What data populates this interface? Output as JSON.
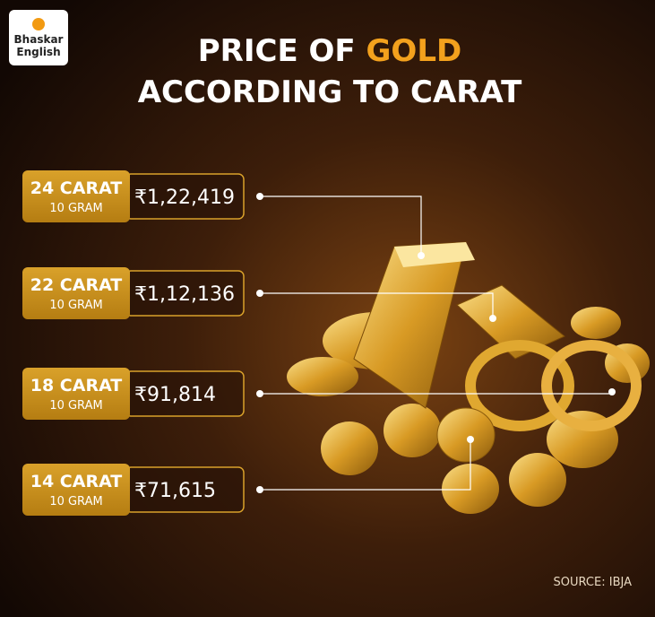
{
  "logo": {
    "line1": "Bhaskar",
    "line2": "English"
  },
  "title": {
    "line1_start": "PRICE OF",
    "line1_highlight": "GOLD",
    "line2": "ACCORDING TO CARAT"
  },
  "rows": [
    {
      "label": "24 CARAT",
      "unit": "10 GRAM",
      "price": "₹1,22,419"
    },
    {
      "label": "22 CARAT",
      "unit": "10 GRAM",
      "price": "₹1,12,136"
    },
    {
      "label": "18 CARAT",
      "unit": "10 GRAM",
      "price": "₹91,814"
    },
    {
      "label": "14 CARAT",
      "unit": "10 GRAM",
      "price": "₹71,615"
    }
  ],
  "source": "SOURCE: IBJA"
}
